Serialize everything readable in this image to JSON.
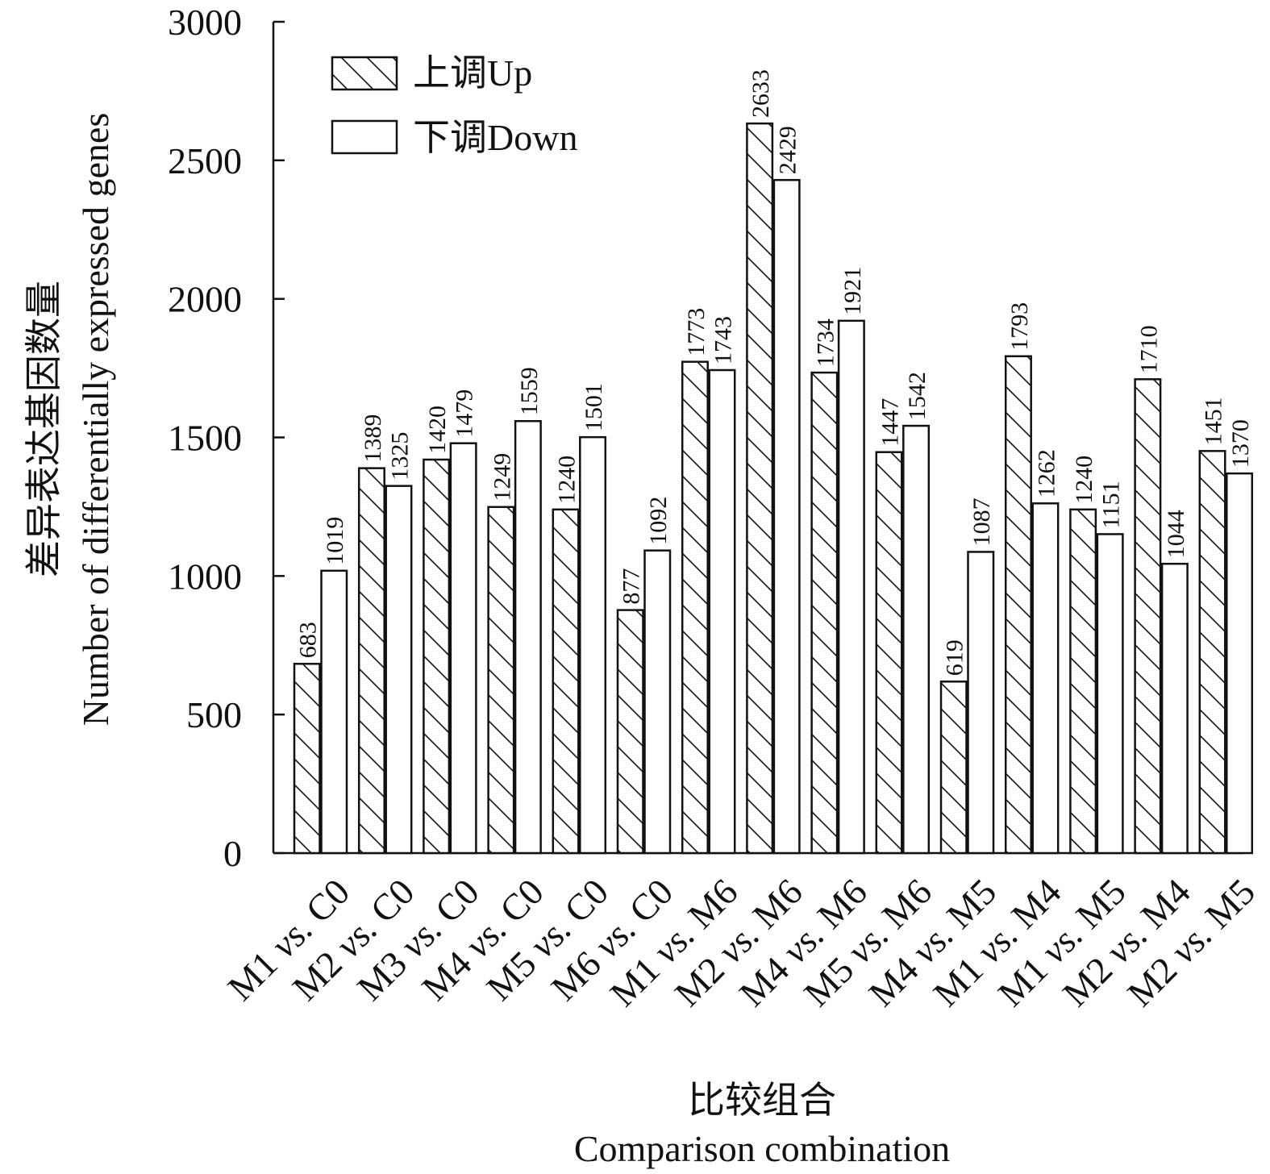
{
  "chart_data": {
    "type": "bar",
    "categories": [
      {
        "first": "M1",
        "vs": "vs.",
        "second": "C0"
      },
      {
        "first": "M2",
        "vs": "vs.",
        "second": "C0"
      },
      {
        "first": "M3",
        "vs": "vs.",
        "second": "C0"
      },
      {
        "first": "M4",
        "vs": "vs.",
        "second": "C0"
      },
      {
        "first": "M5",
        "vs": "vs.",
        "second": "C0"
      },
      {
        "first": "M6",
        "vs": "vs.",
        "second": "C0"
      },
      {
        "first": "M1",
        "vs": "vs.",
        "second": "M6"
      },
      {
        "first": "M2",
        "vs": "vs.",
        "second": "M6"
      },
      {
        "first": "M4",
        "vs": "vs.",
        "second": "M6"
      },
      {
        "first": "M5",
        "vs": "vs.",
        "second": "M6"
      },
      {
        "first": "M4",
        "vs": "vs.",
        "second": "M5"
      },
      {
        "first": "M1",
        "vs": "vs.",
        "second": "M4"
      },
      {
        "first": "M1",
        "vs": "vs.",
        "second": "M5"
      },
      {
        "first": "M2",
        "vs": "vs.",
        "second": "M4"
      },
      {
        "first": "M2",
        "vs": "vs.",
        "second": "M5"
      }
    ],
    "series": [
      {
        "name": "上调Up",
        "pattern": "hatched",
        "values": [
          683,
          1389,
          1420,
          1249,
          1240,
          877,
          1773,
          2633,
          1734,
          1447,
          619,
          1793,
          1240,
          1710,
          1451
        ]
      },
      {
        "name": "下调Down",
        "pattern": "plain",
        "values": [
          1019,
          1325,
          1479,
          1559,
          1501,
          1092,
          1743,
          2429,
          1921,
          1542,
          1087,
          1262,
          1151,
          1044,
          1370
        ]
      }
    ],
    "ylim": [
      0,
      3000
    ],
    "yticks": [
      0,
      500,
      1000,
      1500,
      2000,
      2500,
      3000
    ],
    "ylabel_cn": "差异表达基因数量",
    "ylabel_en": "Number of differentially expressed genes",
    "xlabel_cn": "比较组合",
    "xlabel_en": "Comparison combination",
    "legend_position": "top-left",
    "grid": false,
    "colors": {
      "bar_fill": "#ffffff",
      "stroke": "#111111"
    }
  }
}
